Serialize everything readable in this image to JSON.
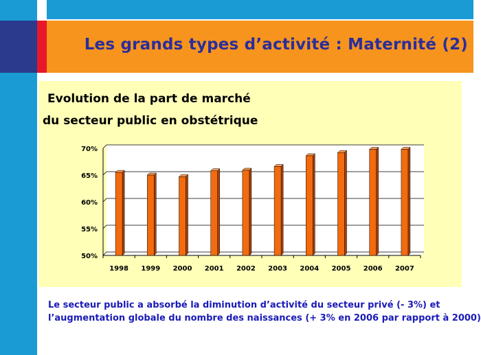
{
  "slide": {
    "title": "Les grands types d’activité : Maternité (2)",
    "footer_line1": "Le secteur public a absorbé la diminution d’activité du secteur privé (- 3%) et",
    "footer_line2": "l’augmentation globale du nombre des naissances (+ 3% en 2006 par rapport à 2000)"
  },
  "colors": {
    "accent_blue": "#1a9bd3",
    "navy": "#2b3a8c",
    "red": "#e8182a",
    "orange": "#f7941d",
    "bar_fill": "#f26b0f",
    "panel_bg": "#ffffb8"
  },
  "chart_data": {
    "type": "bar",
    "title_line1": "Evolution de la part de marché",
    "title_line2": "du secteur public en obstétrique",
    "categories": [
      "1998",
      "1999",
      "2000",
      "2001",
      "2002",
      "2003",
      "2004",
      "2005",
      "2006",
      "2007"
    ],
    "values": [
      65.5,
      65.0,
      64.7,
      65.8,
      65.9,
      66.6,
      68.6,
      69.2,
      69.8,
      69.8
    ],
    "ylim": [
      50,
      70
    ],
    "yticks": [
      50,
      55,
      60,
      65,
      70
    ],
    "ytick_labels": [
      "50%",
      "55%",
      "60%",
      "65%",
      "70%"
    ],
    "grid": true
  }
}
